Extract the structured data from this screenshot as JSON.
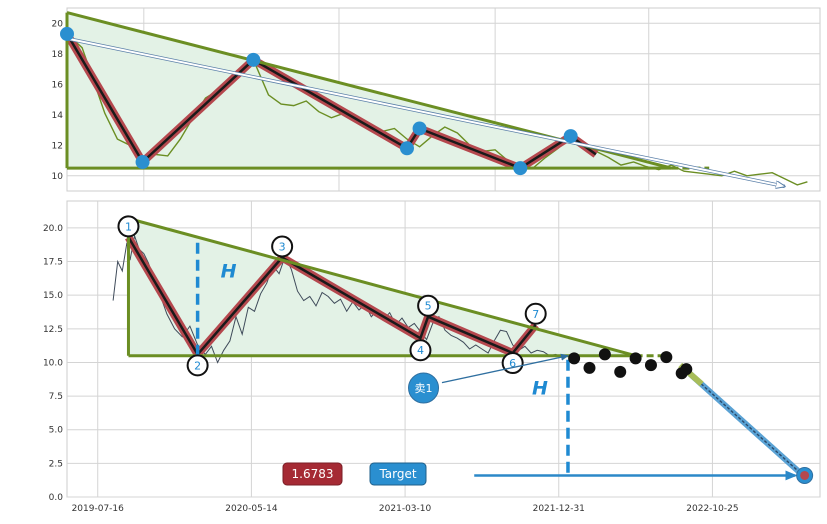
{
  "chart_data": [
    {
      "type": "line",
      "title": "",
      "xlabel": "",
      "ylabel": "",
      "ylim": [
        9,
        21
      ],
      "yticks": [
        10,
        12,
        14,
        16,
        18,
        20
      ],
      "grid": true,
      "series": [
        {
          "x": [
            0.0,
            0.6,
            1.0,
            1.5,
            2.0,
            2.5,
            3.0,
            3.5,
            4.0,
            4.5,
            5.0,
            5.5,
            6.0,
            6.5,
            7.0,
            7.4,
            8.0,
            8.5,
            9.0,
            9.5,
            10.0,
            10.5,
            11.0,
            11.5,
            12.0,
            12.5,
            13.0,
            13.5,
            14.0,
            14.5,
            15.0,
            15.5,
            16.0,
            16.5,
            17.0,
            17.5,
            18.0,
            18.5,
            19.0,
            19.5,
            20.0,
            20.5,
            21.0,
            21.5,
            22.0,
            22.5,
            23.0,
            23.5,
            24.0,
            24.5,
            25.0,
            25.5,
            26.0,
            26.5,
            27.0,
            27.5,
            28.0,
            28.5,
            29.0,
            29.4
          ],
          "y": [
            19.3,
            18.4,
            16.5,
            14.1,
            12.4,
            12.0,
            10.9,
            11.4,
            11.3,
            12.4,
            13.8,
            15.1,
            15.6,
            16.1,
            17.2,
            17.6,
            15.3,
            14.7,
            14.6,
            14.9,
            14.2,
            13.8,
            14.1,
            13.6,
            13.2,
            12.9,
            13.1,
            12.4,
            11.9,
            12.6,
            13.2,
            12.8,
            12.0,
            11.6,
            11.7,
            11.0,
            10.6,
            10.5,
            11.2,
            11.8,
            12.5,
            12.0,
            11.6,
            11.2,
            10.7,
            10.9,
            10.6,
            10.4,
            10.7,
            10.3,
            10.2,
            10.1,
            10.0,
            10.3,
            10.0,
            10.1,
            10.2,
            9.8,
            9.4,
            9.6
          ]
        }
      ],
      "pivots": {
        "x": [
          0.0,
          3.0,
          7.4,
          13.5,
          14.0,
          18.0,
          20.0
        ],
        "y": [
          19.3,
          10.9,
          17.6,
          11.8,
          13.1,
          10.5,
          12.6
        ]
      },
      "zigzag": {
        "x": [
          0.0,
          3.0,
          7.4,
          13.5,
          14.0,
          18.0,
          20.0,
          21.0
        ],
        "y": [
          19.3,
          10.9,
          17.6,
          11.8,
          13.1,
          10.5,
          12.6,
          11.4
        ]
      },
      "upper_trendline": {
        "x": [
          0.0,
          24.0
        ],
        "y": [
          20.7,
          10.5
        ]
      },
      "lower_trendline": {
        "x": [
          0.0,
          24.0
        ],
        "y": [
          10.5,
          10.5
        ]
      },
      "lower_extension": {
        "x": [
          24.0,
          25.5
        ],
        "y": [
          10.5,
          10.5
        ]
      },
      "trend_arrow": {
        "x": [
          0.0,
          28.5
        ],
        "y": [
          19.0,
          9.3
        ]
      }
    },
    {
      "type": "line",
      "title": "",
      "xlabel": "",
      "ylabel": "",
      "ylim": [
        0,
        22
      ],
      "yticks": [
        0.0,
        2.5,
        5.0,
        7.5,
        10.0,
        12.5,
        15.0,
        17.5,
        20.0
      ],
      "xticks": [
        {
          "x": 0.0,
          "label": "2019-07-16"
        },
        {
          "x": 10.0,
          "label": "2020-05-14"
        },
        {
          "x": 20.0,
          "label": "2021-03-10"
        },
        {
          "x": 30.0,
          "label": "2021-12-31"
        },
        {
          "x": 40.0,
          "label": "2022-10-25"
        }
      ],
      "grid": true,
      "series": [
        {
          "x": [
            1.0,
            1.3,
            1.6,
            1.9,
            2.1,
            2.4,
            2.7,
            3.0,
            3.3,
            3.6,
            4.0,
            4.5,
            5.0,
            5.5,
            6.0,
            6.5,
            7.0,
            7.4,
            7.8,
            8.2,
            8.6,
            9.0,
            9.4,
            9.8,
            10.2,
            10.6,
            11.0,
            11.4,
            11.8,
            12.2,
            12.6,
            13.0,
            13.4,
            13.8,
            14.2,
            14.6,
            15.0,
            15.4,
            15.8,
            16.2,
            16.6,
            17.0,
            17.4,
            17.8,
            18.2,
            18.6,
            19.0,
            19.4,
            19.8,
            20.2,
            20.6,
            21.0,
            21.4,
            21.8,
            22.2,
            22.6,
            23.0,
            23.4,
            23.8,
            24.2,
            24.6,
            25.0,
            25.4,
            25.8,
            26.2,
            26.6,
            27.0,
            27.4,
            27.8,
            28.2,
            28.6,
            29.0,
            29.4,
            29.8,
            30.2
          ],
          "y": [
            14.6,
            17.5,
            16.8,
            18.9,
            17.6,
            19.4,
            18.4,
            18.1,
            17.4,
            16.4,
            15.2,
            13.6,
            12.5,
            11.9,
            12.7,
            11.3,
            10.6,
            11.2,
            10.0,
            10.9,
            11.6,
            13.4,
            12.1,
            14.1,
            13.8,
            15.1,
            15.9,
            17.2,
            16.6,
            17.9,
            16.9,
            15.3,
            14.6,
            14.9,
            14.2,
            15.2,
            14.9,
            14.4,
            14.7,
            13.8,
            14.5,
            13.9,
            14.3,
            13.4,
            13.9,
            13.2,
            13.7,
            12.8,
            13.3,
            12.6,
            12.9,
            12.3,
            11.7,
            12.9,
            13.4,
            12.4,
            12.0,
            11.8,
            11.5,
            11.0,
            11.3,
            11.0,
            10.7,
            11.6,
            12.4,
            12.3,
            11.3,
            10.9,
            11.2,
            10.7,
            10.9,
            10.8,
            10.5,
            10.6,
            10.4
          ]
        }
      ],
      "pivots": {
        "labels": [
          "1",
          "2",
          "3",
          "4",
          "5",
          "6",
          "7"
        ],
        "x": [
          2.0,
          6.5,
          12.0,
          21.0,
          21.5,
          27.0,
          28.5
        ],
        "y": [
          19.3,
          10.6,
          17.8,
          11.8,
          13.4,
          10.7,
          12.8
        ]
      },
      "upper_trendline": {
        "x": [
          2.0,
          35.0
        ],
        "y": [
          20.7,
          10.5
        ]
      },
      "lower_trendline": {
        "x": [
          2.0,
          35.0
        ],
        "y": [
          10.5,
          10.5
        ]
      },
      "lower_extension": {
        "x": [
          35.0,
          37.2
        ],
        "y": [
          10.5,
          10.5
        ]
      },
      "breakout_points": {
        "x": [
          31.0,
          32.0,
          33.0,
          34.0,
          35.0,
          36.0,
          37.0,
          38.0,
          38.3
        ],
        "y": [
          10.3,
          9.6,
          10.6,
          9.3,
          10.3,
          9.8,
          10.4,
          9.2,
          9.5
        ]
      },
      "height_marker_1": {
        "x": 6.5,
        "y": [
          10.5,
          19.2
        ],
        "label": "H"
      },
      "height_marker_2": {
        "x": 30.6,
        "y": [
          1.8,
          10.5
        ],
        "label": "H"
      },
      "sell_marker": {
        "x": 21.2,
        "y": 8.1,
        "label": "卖1"
      },
      "sell_arrow": {
        "x": [
          22.4,
          30.6
        ],
        "y": [
          8.5,
          10.5
        ]
      },
      "breakout_line": {
        "x": [
          38.3,
          46.0
        ],
        "y": [
          9.4,
          1.5
        ]
      },
      "target_point": {
        "x": 46.0,
        "y": 1.6
      },
      "target_arrow": {
        "x": [
          24.5,
          45.4
        ],
        "y": [
          1.6,
          1.6
        ]
      },
      "ratio_box": {
        "label": "1.6783"
      },
      "target_box": {
        "label": "Target"
      }
    }
  ]
}
